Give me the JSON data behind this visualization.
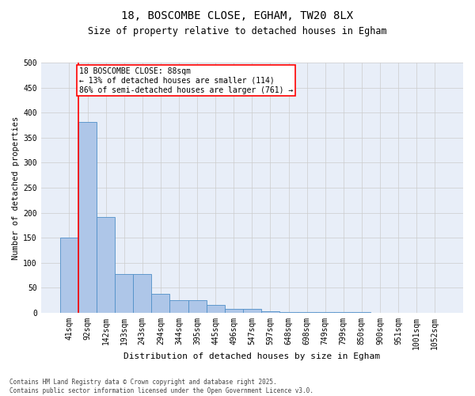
{
  "title": "18, BOSCOMBE CLOSE, EGHAM, TW20 8LX",
  "subtitle": "Size of property relative to detached houses in Egham",
  "xlabel": "Distribution of detached houses by size in Egham",
  "ylabel": "Number of detached properties",
  "bin_labels": [
    "41sqm",
    "92sqm",
    "142sqm",
    "193sqm",
    "243sqm",
    "294sqm",
    "344sqm",
    "395sqm",
    "445sqm",
    "496sqm",
    "547sqm",
    "597sqm",
    "648sqm",
    "698sqm",
    "749sqm",
    "799sqm",
    "850sqm",
    "900sqm",
    "951sqm",
    "1001sqm",
    "1052sqm"
  ],
  "bar_values": [
    150,
    381,
    192,
    77,
    77,
    38,
    25,
    25,
    16,
    7,
    7,
    3,
    2,
    1,
    1,
    1,
    1,
    0,
    0,
    0,
    0
  ],
  "bar_color": "#aec6e8",
  "bar_edge_color": "#5090c8",
  "grid_color": "#cccccc",
  "background_color": "#e8eef8",
  "vline_color": "red",
  "annotation_text": "18 BOSCOMBE CLOSE: 88sqm\n← 13% of detached houses are smaller (114)\n86% of semi-detached houses are larger (761) →",
  "annotation_box_color": "white",
  "annotation_box_edge": "red",
  "footer_line1": "Contains HM Land Registry data © Crown copyright and database right 2025.",
  "footer_line2": "Contains public sector information licensed under the Open Government Licence v3.0.",
  "ylim": [
    0,
    500
  ],
  "yticks": [
    0,
    50,
    100,
    150,
    200,
    250,
    300,
    350,
    400,
    450,
    500
  ],
  "title_fontsize": 10,
  "subtitle_fontsize": 8.5,
  "xlabel_fontsize": 8,
  "ylabel_fontsize": 7.5,
  "tick_fontsize": 7,
  "annotation_fontsize": 7,
  "footer_fontsize": 5.5
}
